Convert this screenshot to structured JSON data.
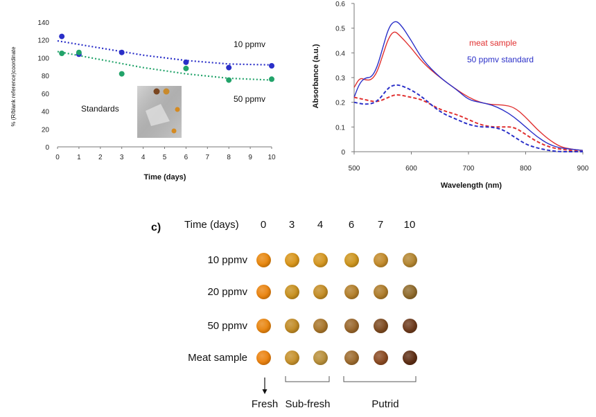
{
  "chart_data": [
    {
      "type": "scatter",
      "title": "",
      "xlabel": "Time (days)",
      "ylabel": "% (R/blank reference)coordinate",
      "xlim": [
        0,
        10
      ],
      "ylim": [
        0,
        140
      ],
      "x_ticks": [
        "0",
        "1",
        "2",
        "3",
        "4",
        "5",
        "6",
        "7",
        "8",
        "9",
        "10"
      ],
      "y_ticks": [
        "0",
        "20",
        "40",
        "60",
        "80",
        "100",
        "120",
        "140"
      ],
      "series": [
        {
          "name": "10 ppmv",
          "color": "#2a2fc8",
          "x": [
            0.2,
            1,
            3,
            6,
            8,
            10
          ],
          "y": [
            124,
            104,
            106,
            95,
            89,
            91
          ],
          "trend": [
            [
              0,
              119
            ],
            [
              2,
              111
            ],
            [
              4,
              103
            ],
            [
              6,
              97
            ],
            [
              8,
              93
            ],
            [
              10,
              92
            ]
          ]
        },
        {
          "name": "50 ppmv",
          "color": "#22a36a",
          "x": [
            0.2,
            1,
            3,
            6,
            8,
            10
          ],
          "y": [
            105,
            106,
            82,
            88,
            75,
            76
          ],
          "trend": [
            [
              0,
              107
            ],
            [
              2,
              98
            ],
            [
              4,
              89
            ],
            [
              6,
              82
            ],
            [
              8,
              77
            ],
            [
              10,
              75
            ]
          ]
        }
      ],
      "annotations": {
        "series1_label": "10 ppmv",
        "series2_label": "50 ppmv",
        "inset_label": "Standards"
      }
    },
    {
      "type": "line",
      "title": "",
      "xlabel": "Wavelength (nm)",
      "ylabel": "Absorbance (a.u.)",
      "xlim": [
        500,
        900
      ],
      "ylim": [
        0,
        0.6
      ],
      "x_ticks": [
        "500",
        "600",
        "700",
        "800",
        "900"
      ],
      "y_ticks": [
        "0",
        "0.1",
        "0.2",
        "0.3",
        "0.4",
        "0.5",
        "0.6"
      ],
      "legend": [
        "meat sample",
        "50 ppmv standard"
      ],
      "series": [
        {
          "name": "meat sample",
          "style": "solid",
          "color": "#e03030",
          "x": [
            500,
            510,
            520,
            530,
            540,
            550,
            560,
            570,
            580,
            600,
            620,
            650,
            680,
            700,
            720,
            740,
            760,
            780,
            800,
            820,
            840,
            860,
            880,
            900
          ],
          "y": [
            0.26,
            0.3,
            0.29,
            0.29,
            0.32,
            0.39,
            0.46,
            0.49,
            0.47,
            0.42,
            0.36,
            0.3,
            0.25,
            0.22,
            0.2,
            0.19,
            0.19,
            0.18,
            0.14,
            0.09,
            0.05,
            0.02,
            0.01,
            0.005
          ]
        },
        {
          "name": "50 ppmv standard",
          "style": "solid",
          "color": "#2a2fc8",
          "x": [
            500,
            510,
            520,
            530,
            540,
            550,
            560,
            570,
            580,
            600,
            620,
            650,
            680,
            700,
            720,
            740,
            760,
            780,
            800,
            820,
            840,
            860,
            880,
            900
          ],
          "y": [
            0.22,
            0.28,
            0.3,
            0.3,
            0.34,
            0.42,
            0.5,
            0.53,
            0.52,
            0.45,
            0.37,
            0.3,
            0.25,
            0.21,
            0.2,
            0.19,
            0.17,
            0.14,
            0.1,
            0.06,
            0.03,
            0.015,
            0.01,
            0.005
          ]
        },
        {
          "name": "meat sample (dashed)",
          "style": "dashed",
          "color": "#e03030",
          "x": [
            500,
            520,
            540,
            560,
            570,
            580,
            600,
            620,
            650,
            680,
            700,
            720,
            740,
            760,
            780,
            800,
            820,
            840,
            860,
            880,
            900
          ],
          "y": [
            0.22,
            0.21,
            0.2,
            0.22,
            0.23,
            0.23,
            0.22,
            0.21,
            0.17,
            0.15,
            0.13,
            0.11,
            0.1,
            0.1,
            0.1,
            0.07,
            0.04,
            0.02,
            0.01,
            0.005,
            0.0
          ]
        },
        {
          "name": "50 ppmv standard (dashed)",
          "style": "dashed",
          "color": "#2a2fc8",
          "x": [
            500,
            520,
            540,
            560,
            570,
            580,
            600,
            620,
            650,
            680,
            700,
            720,
            740,
            760,
            780,
            800,
            820,
            840,
            860,
            880,
            900
          ],
          "y": [
            0.2,
            0.19,
            0.2,
            0.26,
            0.27,
            0.27,
            0.25,
            0.22,
            0.16,
            0.13,
            0.11,
            0.1,
            0.1,
            0.09,
            0.06,
            0.03,
            0.015,
            0.005,
            0.0,
            0.0,
            0.0
          ]
        }
      ]
    }
  ],
  "panel_c": {
    "label": "c)",
    "header_label": "Time (days)",
    "days": [
      "0",
      "3",
      "4",
      "6",
      "7",
      "10"
    ],
    "rows": [
      {
        "label": "10 ppmv",
        "colors": [
          "#e8870e",
          "#d8951a",
          "#d49620",
          "#cd951e",
          "#c28a2a",
          "#b38530"
        ]
      },
      {
        "label": "20 ppmv",
        "colors": [
          "#ea8410",
          "#c7901f",
          "#c38c25",
          "#b27e2a",
          "#ad7b2a",
          "#8f6a2b"
        ]
      },
      {
        "label": "50 ppmv",
        "colors": [
          "#e8850f",
          "#c08a24",
          "#a8752a",
          "#98652a",
          "#7d4a20",
          "#6d3a1c"
        ]
      },
      {
        "label": "Meat sample",
        "colors": [
          "#eb820f",
          "#c5902b",
          "#b88f3a",
          "#9c6a2d",
          "#8a4a22",
          "#5e2e14"
        ]
      }
    ],
    "categories": [
      "Fresh",
      "Sub-fresh",
      "Putrid"
    ]
  }
}
